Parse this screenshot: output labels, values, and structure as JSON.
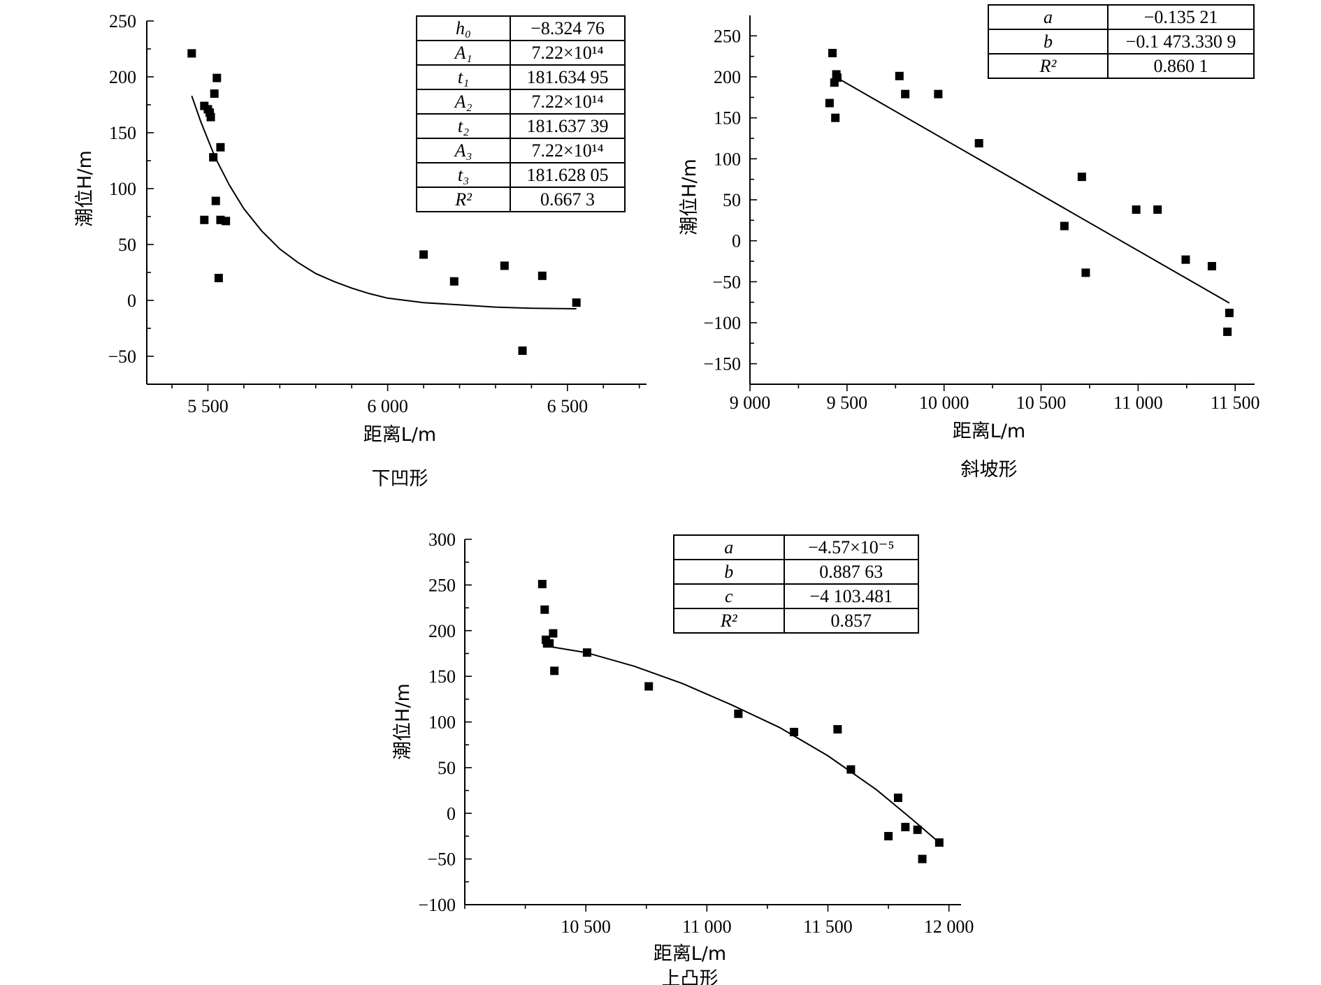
{
  "panels": [
    {
      "caption": "下凹形",
      "xlabel": "距离L/m",
      "ylabel": "潮位H/m",
      "params": [
        [
          "h₀",
          "−8.324 76"
        ],
        [
          "A₁",
          "7.22×10¹⁴"
        ],
        [
          "t₁",
          "181.634 95"
        ],
        [
          "A₂",
          "7.22×10¹⁴"
        ],
        [
          "t₂",
          "181.637 39"
        ],
        [
          "A₃",
          "7.22×10¹⁴"
        ],
        [
          "t₃",
          "181.628 05"
        ],
        [
          "R²",
          "0.667 3"
        ]
      ]
    },
    {
      "caption": "斜坡形",
      "xlabel": "距离L/m",
      "ylabel": "潮位H/m",
      "params": [
        [
          "a",
          "−0.135 21"
        ],
        [
          "b",
          "−0.1 473.330 9"
        ],
        [
          "R²",
          "0.860 1"
        ]
      ]
    },
    {
      "caption": "上凸形",
      "xlabel": "距离L/m",
      "ylabel": "潮位H/m",
      "params": [
        [
          "a",
          "−4.57×10⁻⁵"
        ],
        [
          "b",
          "0.887 63"
        ],
        [
          "c",
          "−4 103.481"
        ],
        [
          "R²",
          "0.857"
        ]
      ]
    }
  ],
  "chart_data": [
    {
      "type": "scatter",
      "title": "下凹形",
      "xlabel": "距离L/m",
      "ylabel": "潮位H/m",
      "xlim": [
        5330,
        6720
      ],
      "ylim": [
        -75,
        250
      ],
      "xticks": [
        5500,
        6000,
        6500
      ],
      "xtick_labels": [
        "5 500",
        "6 000",
        "6 500"
      ],
      "yticks": [
        -50,
        0,
        50,
        100,
        150,
        200,
        250
      ],
      "ytick_labels": [
        "−50",
        "0",
        "50",
        "100",
        "150",
        "200",
        "250"
      ],
      "points": [
        [
          5455,
          221
        ],
        [
          5490,
          174
        ],
        [
          5500,
          171
        ],
        [
          5505,
          168
        ],
        [
          5508,
          164
        ],
        [
          5518,
          185
        ],
        [
          5525,
          199
        ],
        [
          5535,
          137
        ],
        [
          5515,
          128
        ],
        [
          5522,
          89
        ],
        [
          5535,
          72
        ],
        [
          5550,
          71
        ],
        [
          5490,
          72
        ],
        [
          5530,
          20
        ],
        [
          6100,
          41
        ],
        [
          6185,
          17
        ],
        [
          6325,
          31
        ],
        [
          6430,
          22
        ],
        [
          6375,
          -45
        ],
        [
          6525,
          -2
        ]
      ],
      "fit": {
        "model": "h0 + A1*exp(-x/t1) + A2*exp(-x/t2) + A3*exp(-x/t3)",
        "x_range": [
          5455,
          6525
        ],
        "h0": -8.32476,
        "r2": 0.6673,
        "curve": [
          [
            5455,
            183
          ],
          [
            5480,
            160
          ],
          [
            5520,
            128
          ],
          [
            5560,
            103
          ],
          [
            5600,
            82
          ],
          [
            5650,
            62
          ],
          [
            5700,
            46
          ],
          [
            5750,
            34
          ],
          [
            5800,
            24
          ],
          [
            5850,
            17
          ],
          [
            5900,
            11
          ],
          [
            5950,
            6
          ],
          [
            6000,
            2
          ],
          [
            6100,
            -2
          ],
          [
            6200,
            -4
          ],
          [
            6300,
            -6
          ],
          [
            6400,
            -7
          ],
          [
            6525,
            -7.5
          ]
        ]
      },
      "grid": false,
      "legend": "none"
    },
    {
      "type": "scatter",
      "title": "斜坡形",
      "xlabel": "距离L/m",
      "ylabel": "潮位H/m",
      "xlim": [
        9000,
        11600
      ],
      "ylim": [
        -175,
        275
      ],
      "xticks": [
        9000,
        9500,
        10000,
        10500,
        11000,
        11500
      ],
      "xtick_labels": [
        "9 000",
        "9 500",
        "10 000",
        "10 500",
        "11 000",
        "11 500"
      ],
      "yticks": [
        -150,
        -100,
        -50,
        0,
        50,
        100,
        150,
        200,
        250
      ],
      "ytick_labels": [
        "−150",
        "−100",
        "−50",
        "0",
        "50",
        "100",
        "150",
        "200",
        "250"
      ],
      "points": [
        [
          9425,
          229
        ],
        [
          9445,
          203
        ],
        [
          9450,
          199
        ],
        [
          9435,
          193
        ],
        [
          9410,
          168
        ],
        [
          9440,
          150
        ],
        [
          9770,
          201
        ],
        [
          9800,
          179
        ],
        [
          9970,
          179
        ],
        [
          10180,
          119
        ],
        [
          10710,
          78
        ],
        [
          10620,
          18
        ],
        [
          10730,
          -39
        ],
        [
          10990,
          38
        ],
        [
          11100,
          38
        ],
        [
          11245,
          -23
        ],
        [
          11380,
          -31
        ],
        [
          11470,
          -88
        ],
        [
          11460,
          -111
        ]
      ],
      "fit": {
        "model": "linear",
        "a": -0.13521,
        "r2": 0.8601,
        "line": [
          [
            9440,
            200
          ],
          [
            11470,
            -76
          ]
        ]
      },
      "grid": false,
      "legend": "none"
    },
    {
      "type": "scatter",
      "title": "上凸形",
      "xlabel": "距离L/m",
      "ylabel": "潮位H/m",
      "xlim": [
        10000,
        12050
      ],
      "ylim": [
        -100,
        300
      ],
      "xticks": [
        10500,
        11000,
        11500,
        12000
      ],
      "xtick_labels": [
        "10 500",
        "11 000",
        "11 500",
        "12 000"
      ],
      "yticks": [
        -100,
        -50,
        0,
        50,
        100,
        150,
        200,
        250,
        300
      ],
      "ytick_labels": [
        "−100",
        "−50",
        "0",
        "50",
        "100",
        "150",
        "200",
        "250",
        "300"
      ],
      "points": [
        [
          10320,
          251
        ],
        [
          10330,
          223
        ],
        [
          10335,
          190
        ],
        [
          10340,
          186
        ],
        [
          10350,
          186
        ],
        [
          10365,
          197
        ],
        [
          10370,
          156
        ],
        [
          10505,
          176
        ],
        [
          10760,
          139
        ],
        [
          11130,
          109
        ],
        [
          11360,
          89
        ],
        [
          11540,
          92
        ],
        [
          11595,
          48
        ],
        [
          11750,
          -25
        ],
        [
          11790,
          17
        ],
        [
          11820,
          -15
        ],
        [
          11870,
          -18
        ],
        [
          11890,
          -50
        ],
        [
          11960,
          -32
        ]
      ],
      "fit": {
        "model": "quadratic",
        "a": -4.57e-05,
        "r2": 0.857,
        "curve": [
          [
            10340,
            183
          ],
          [
            10500,
            176
          ],
          [
            10700,
            161
          ],
          [
            10900,
            142
          ],
          [
            11100,
            119
          ],
          [
            11300,
            94
          ],
          [
            11500,
            63
          ],
          [
            11700,
            26
          ],
          [
            11850,
            -7
          ],
          [
            11960,
            -32
          ]
        ]
      },
      "grid": false,
      "legend": "none"
    }
  ]
}
